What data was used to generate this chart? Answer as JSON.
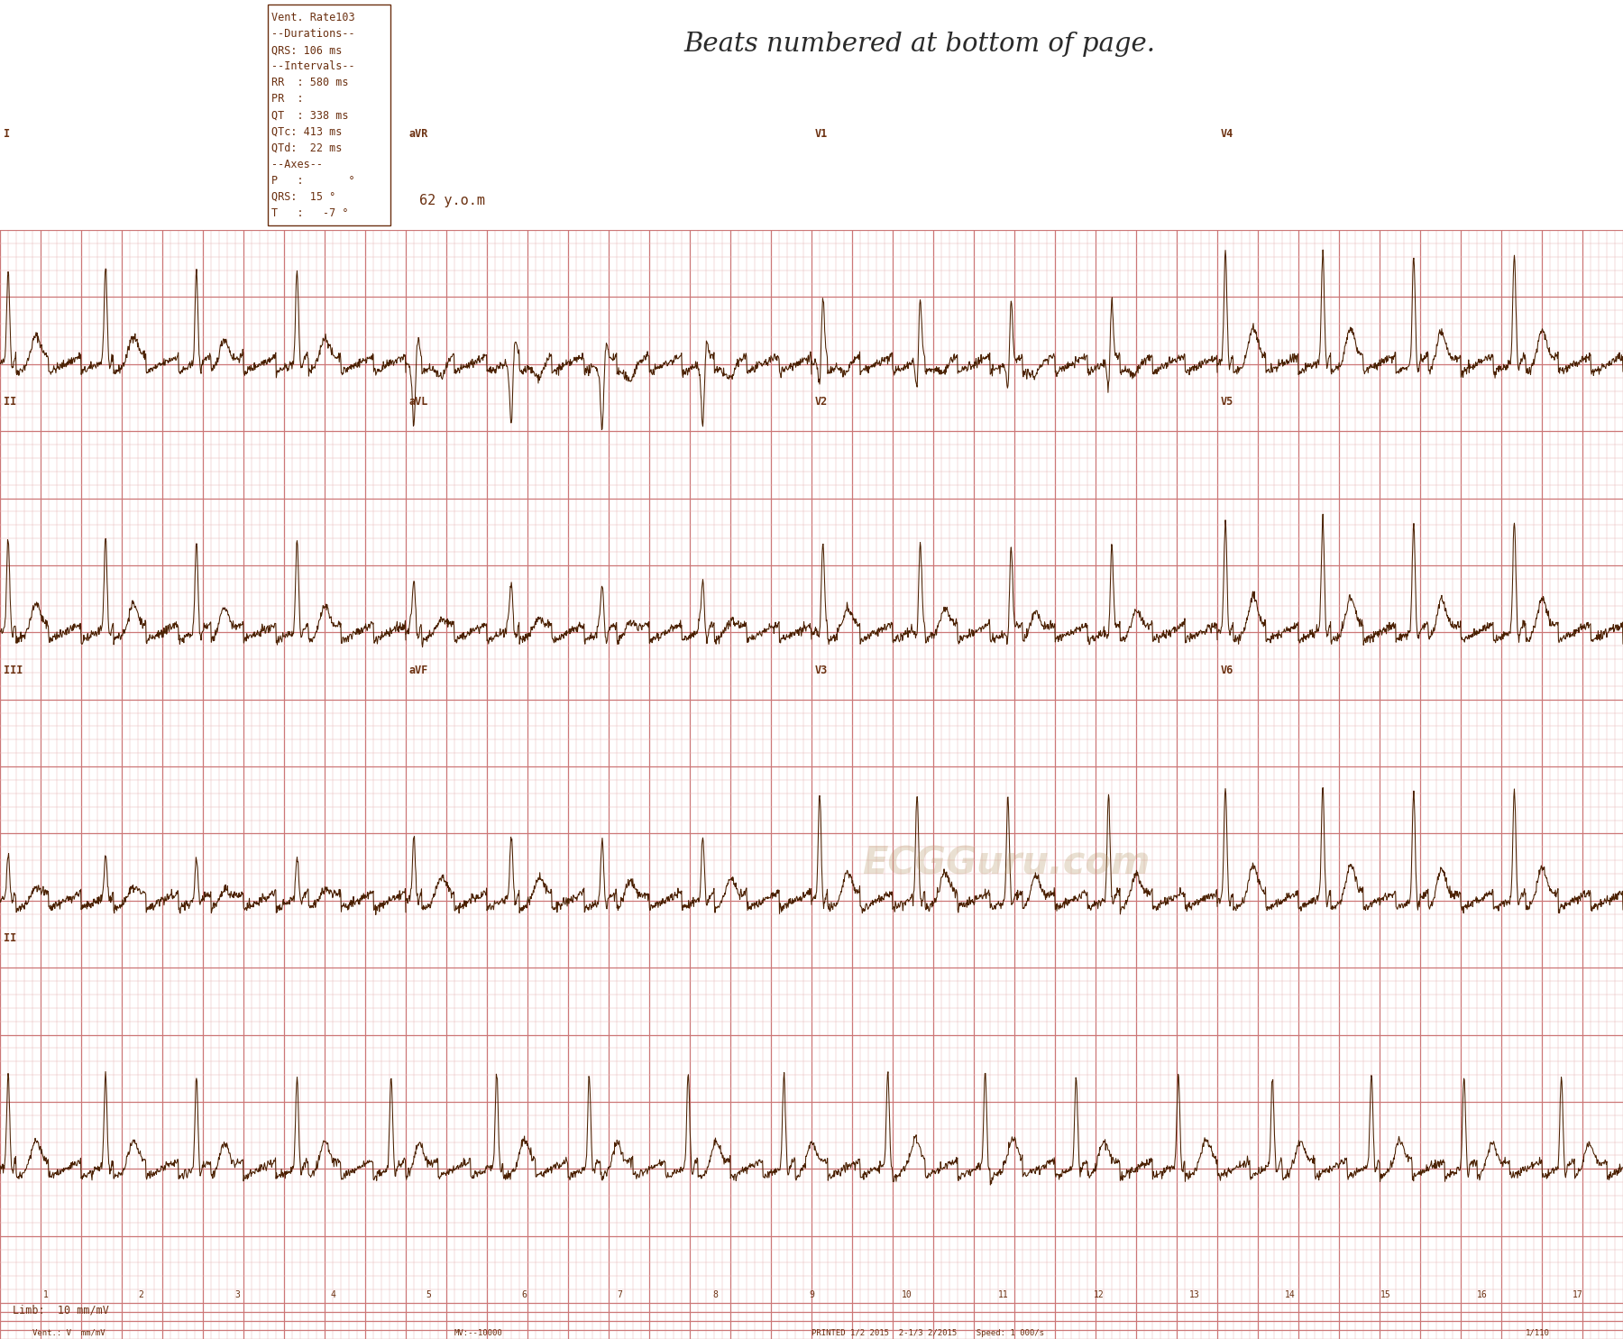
{
  "bg_color": "#faf0e6",
  "grid_minor_color": "#e8b8b8",
  "grid_major_color": "#cc7777",
  "ecg_color": "#4a2000",
  "label_color": "#6b3010",
  "title_text": "Beats numbered at bottom of page.",
  "info_lines": [
    "Vent. Rate103",
    "--Durations--",
    "QRS: 106 ms",
    "--Intervals--",
    "RR  : 580 ms",
    "PR  :",
    "QT  : 338 ms",
    "QTc: 413 ms",
    "QTd:  22 ms",
    "--Axes--",
    "P   :       °",
    "QRS:  15 °",
    "T   :   -7 °"
  ],
  "age_text": "62 y.o.m",
  "limb_text": "Limb:  10 mm/mV",
  "watermark": "ECGGuru.com",
  "beat_numbers": [
    "1",
    "2",
    "3",
    "4",
    "5",
    "6",
    "7",
    "8",
    "9",
    "10",
    "11",
    "12",
    "13",
    "14",
    "15",
    "16",
    "17"
  ]
}
